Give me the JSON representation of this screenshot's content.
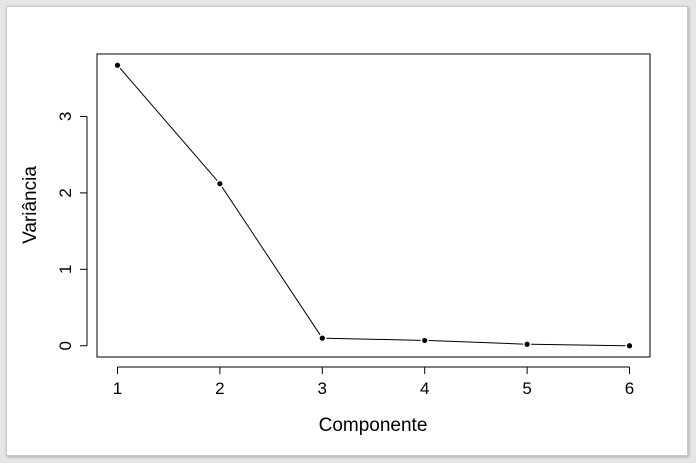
{
  "chart_data": {
    "type": "line",
    "title": "",
    "xlabel": "Componente",
    "ylabel": "Variância",
    "x": [
      1,
      2,
      3,
      4,
      5,
      6
    ],
    "series": [
      {
        "values": [
          3.67,
          2.12,
          0.1,
          0.07,
          0.02,
          0.0
        ]
      }
    ],
    "xticks": [
      "1",
      "2",
      "3",
      "4",
      "5",
      "6"
    ],
    "yticks": [
      "0",
      "1",
      "2",
      "3"
    ],
    "xlim": [
      0.8,
      6.2
    ],
    "ylim": [
      -0.147,
      3.817
    ],
    "grid": false,
    "legend": "none",
    "markers": true,
    "line_color": "#000000"
  }
}
